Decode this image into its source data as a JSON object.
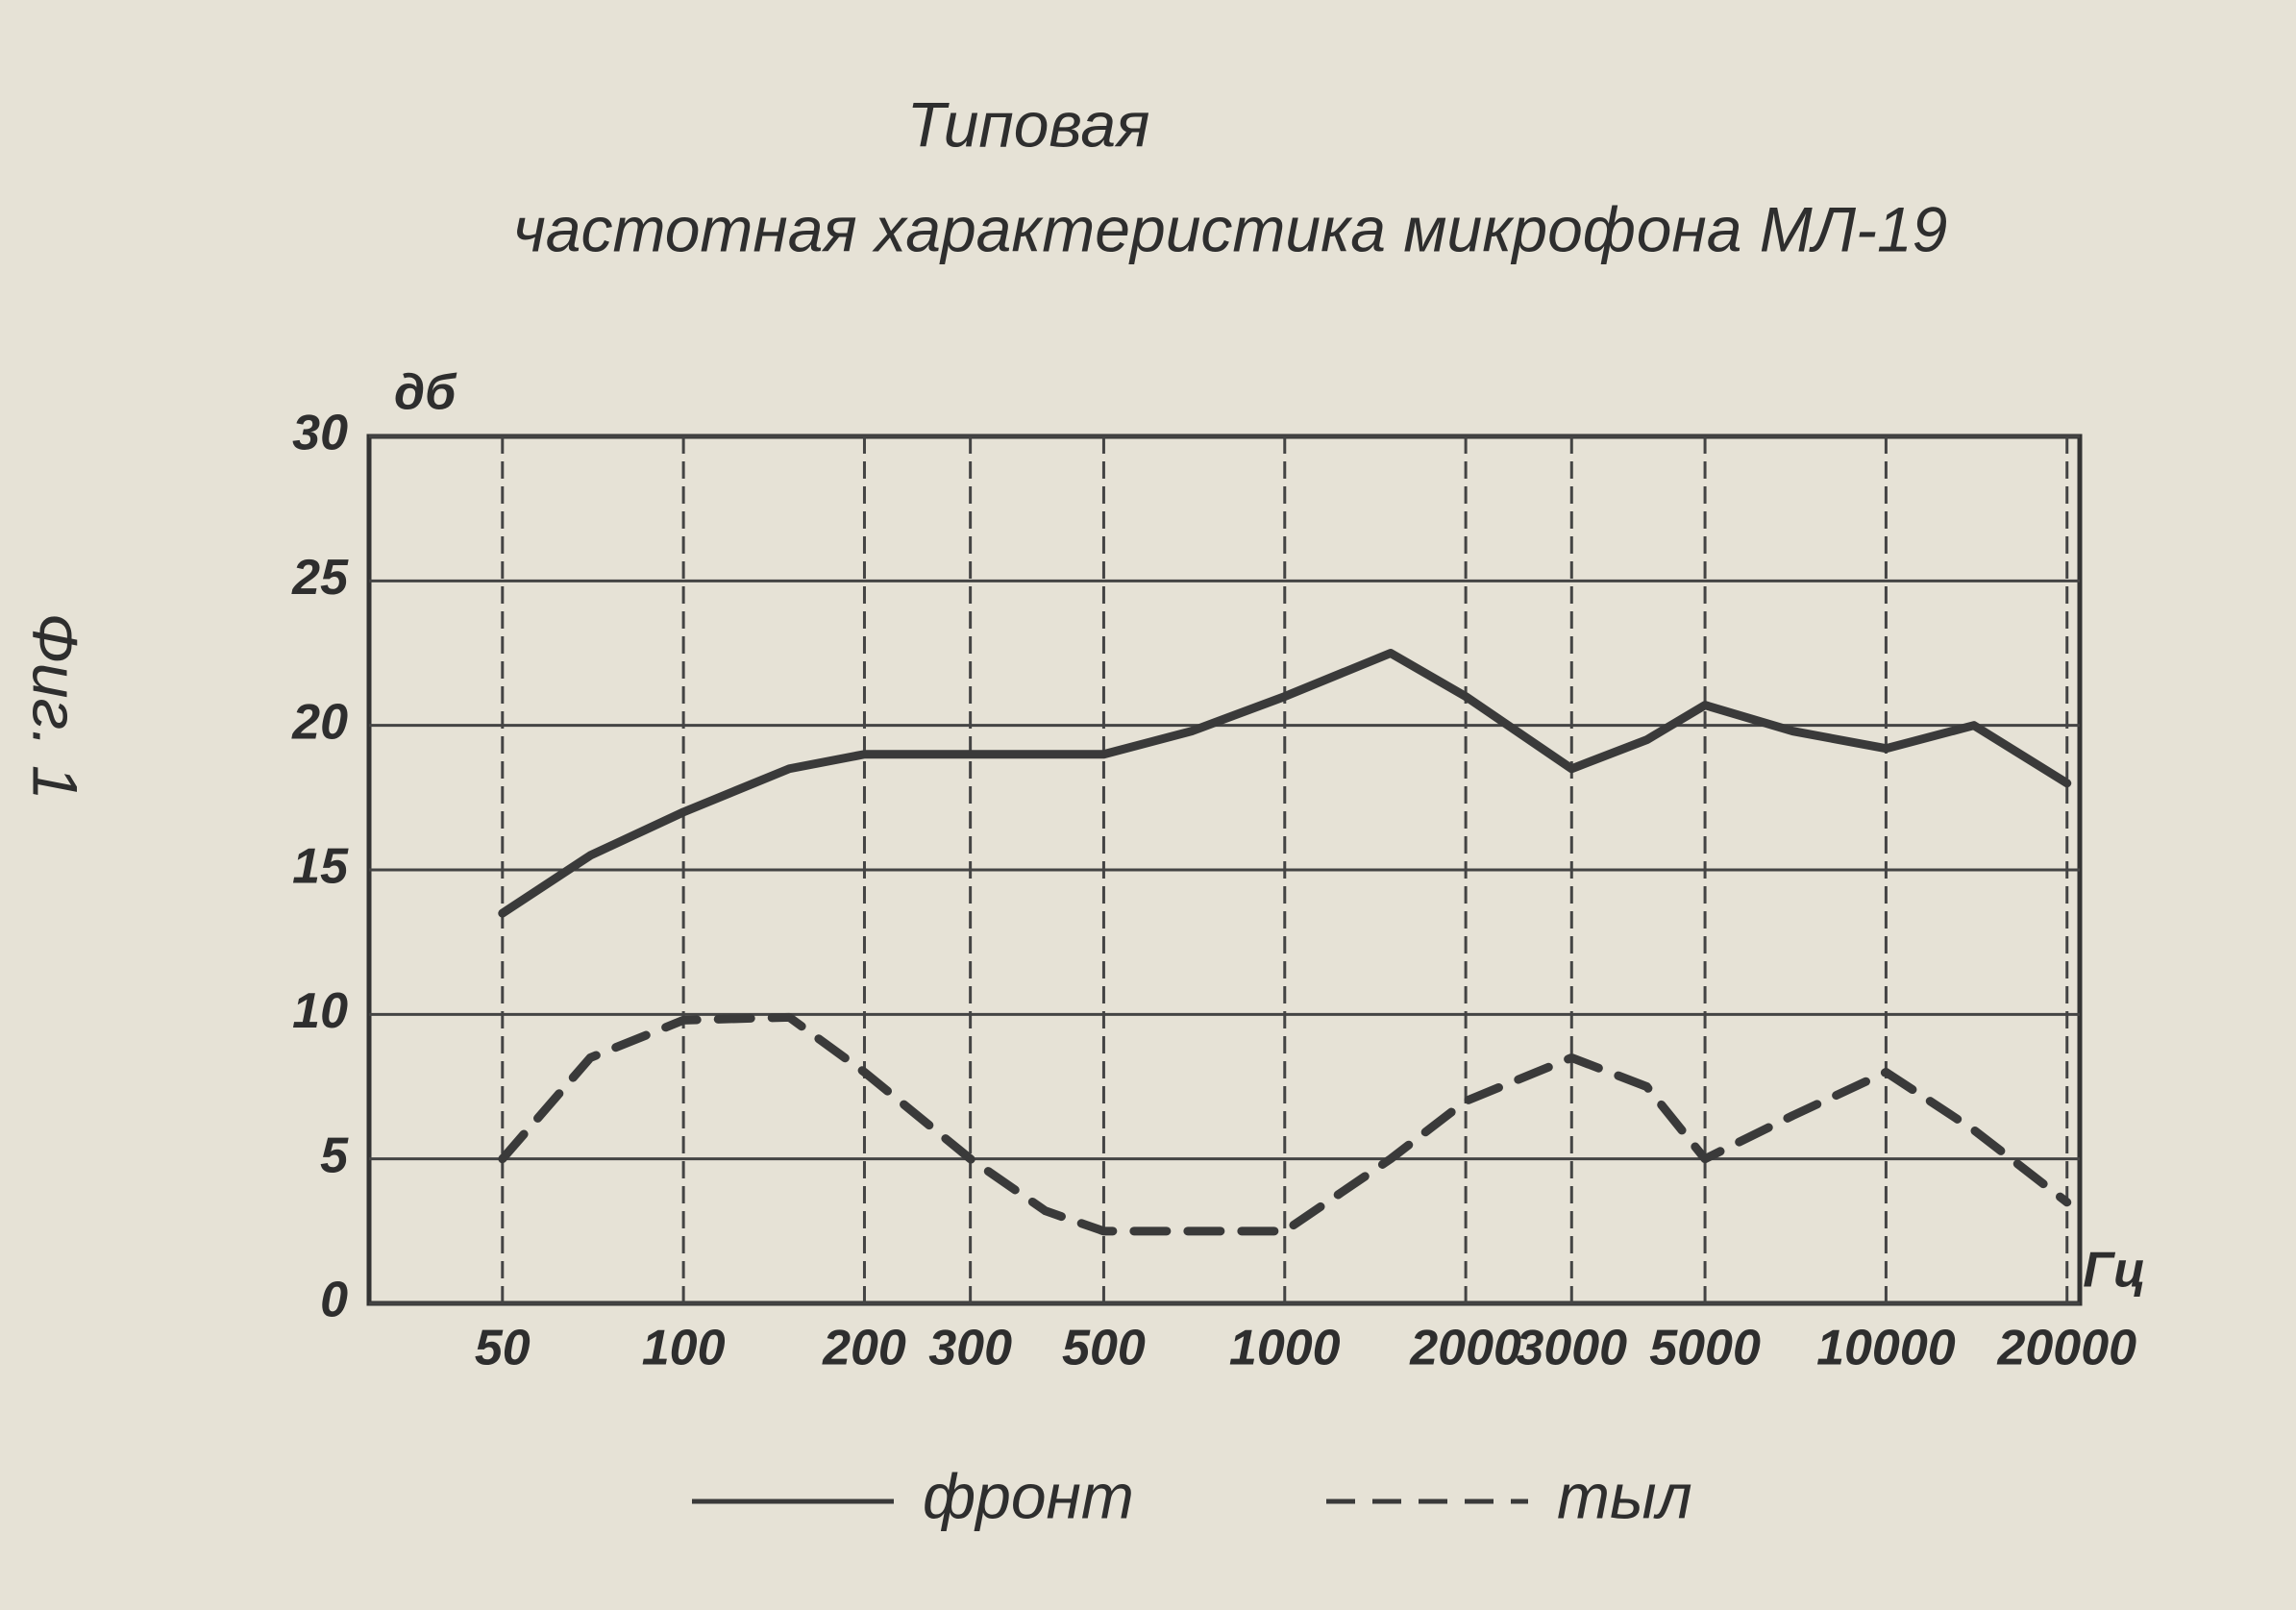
{
  "chart_data": {
    "type": "line",
    "title": "Типовая",
    "subtitle": "частотная характеристика микрофона МЛ-19",
    "figure_label": "Фиг. 1",
    "ylabel": "дб",
    "xlabel": "Гц",
    "x": [
      50,
      70,
      100,
      150,
      200,
      300,
      400,
      500,
      700,
      1000,
      1500,
      2000,
      3000,
      4000,
      5000,
      7000,
      10000,
      14000,
      20000
    ],
    "series": [
      {
        "name": "фронт",
        "color": "#3a3a3a",
        "line_style": "solid",
        "values": [
          13.5,
          15.5,
          17,
          18.5,
          19,
          19,
          19,
          19,
          19.8,
          21,
          22.5,
          21,
          18.5,
          19.5,
          20.7,
          19.8,
          19.2,
          20,
          18
        ]
      },
      {
        "name": "тыл",
        "color": "#3a3a3a",
        "line_style": "dashed",
        "values": [
          5,
          8.5,
          9.8,
          9.9,
          8,
          5,
          3.2,
          2.5,
          2.5,
          2.5,
          5,
          7,
          8.5,
          7.5,
          5,
          6.5,
          8,
          6,
          3.5
        ]
      }
    ],
    "xscale": "log",
    "xlim": [
      30,
      21000
    ],
    "xticks": [
      50,
      100,
      200,
      300,
      500,
      1000,
      2000,
      3000,
      5000,
      10000,
      20000
    ],
    "ylim": [
      0,
      30
    ],
    "yticks": [
      0,
      5,
      10,
      15,
      20,
      25,
      30
    ],
    "grid": true,
    "legend": "bottom"
  }
}
